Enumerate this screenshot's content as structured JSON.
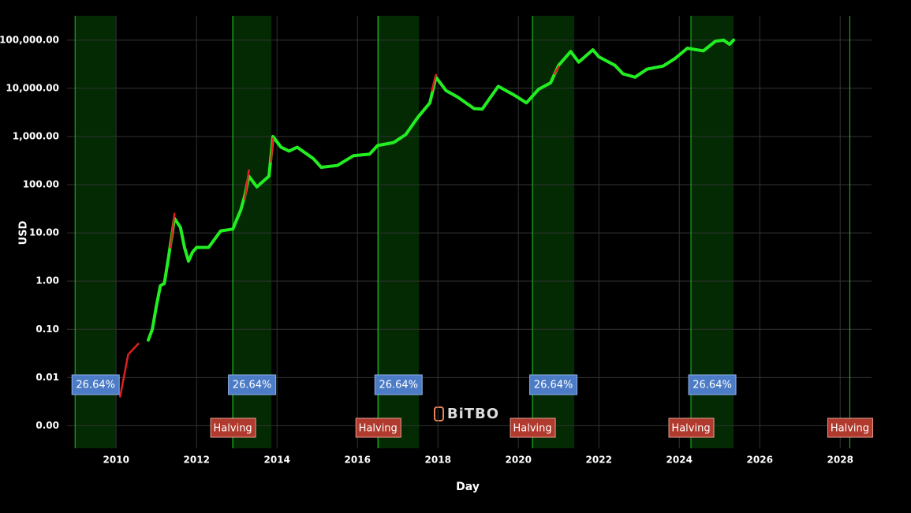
{
  "chart_data": {
    "type": "line",
    "log_y": true,
    "grid": true,
    "x_label": "Day",
    "y_label": "USD",
    "watermark": "BiTBO",
    "xlim": [
      2008.78,
      2028.78
    ],
    "xticks": [
      2010,
      2012,
      2014,
      2016,
      2018,
      2020,
      2022,
      2024,
      2026,
      2028
    ],
    "ylim": [
      0.00034,
      320000
    ],
    "yticks": [
      {
        "value": 0.001,
        "label": "0.00"
      },
      {
        "value": 0.01,
        "label": "0.01"
      },
      {
        "value": 0.1,
        "label": "0.10"
      },
      {
        "value": 1,
        "label": "1.00"
      },
      {
        "value": 10,
        "label": "10.00"
      },
      {
        "value": 100,
        "label": "100.00"
      },
      {
        "value": 1000,
        "label": "1,000.00"
      },
      {
        "value": 10000,
        "label": "10,000.00"
      },
      {
        "value": 100000,
        "label": "100,000.00"
      }
    ],
    "bands": [
      {
        "start": 2008.98,
        "end": 2010.0,
        "label": "26.64%"
      },
      {
        "start": 2012.9,
        "end": 2013.86,
        "label": "26.64%"
      },
      {
        "start": 2016.51,
        "end": 2017.53,
        "label": "26.64%"
      },
      {
        "start": 2020.35,
        "end": 2021.39,
        "label": "26.64%"
      },
      {
        "start": 2024.29,
        "end": 2025.35,
        "label": "26.64%"
      }
    ],
    "halvings": [
      {
        "x": 2012.9,
        "label": "Halving"
      },
      {
        "x": 2016.51,
        "label": "Halving"
      },
      {
        "x": 2020.35,
        "label": "Halving"
      },
      {
        "x": 2024.29,
        "label": "Halving"
      },
      {
        "x": 2028.24,
        "label": "Halving"
      }
    ],
    "series": [
      {
        "color": "#22ee22",
        "x": [
          2010.8,
          2010.9,
          2011.0,
          2011.1,
          2011.2,
          2011.3,
          2011.45,
          2011.6,
          2011.7,
          2011.8,
          2011.9,
          2012.0,
          2012.3,
          2012.6,
          2012.9,
          2013.1,
          2013.2,
          2013.3,
          2013.5,
          2013.8,
          2013.9,
          2014.1,
          2014.3,
          2014.5,
          2014.9,
          2015.1,
          2015.5,
          2015.9,
          2016.3,
          2016.5,
          2016.9,
          2017.2,
          2017.5,
          2017.8,
          2017.95,
          2018.2,
          2018.5,
          2018.9,
          2019.1,
          2019.5,
          2019.9,
          2020.2,
          2020.5,
          2020.8,
          2021.0,
          2021.3,
          2021.5,
          2021.85,
          2022.0,
          2022.4,
          2022.6,
          2022.9,
          2023.2,
          2023.6,
          2023.9,
          2024.2,
          2024.6,
          2024.9,
          2025.1,
          2025.25,
          2025.35
        ],
        "values": [
          0.06,
          0.1,
          0.3,
          0.8,
          0.9,
          3,
          20,
          13,
          5,
          2.6,
          4,
          5,
          5,
          11,
          12,
          30,
          60,
          150,
          90,
          150,
          1000,
          600,
          500,
          600,
          350,
          230,
          250,
          400,
          430,
          650,
          750,
          1100,
          2500,
          5000,
          17000,
          9000,
          6500,
          3800,
          3700,
          11000,
          7200,
          5000,
          9500,
          13000,
          30000,
          58000,
          35000,
          63000,
          45000,
          30000,
          20000,
          17000,
          25000,
          29000,
          42000,
          68000,
          60000,
          95000,
          100000,
          82000,
          100000
        ]
      },
      {
        "color": "#e02020",
        "x": [
          2010.1,
          2010.3,
          2010.55,
          null,
          2011.35,
          2011.45,
          null,
          2013.2,
          2013.3,
          null,
          2013.85,
          2013.9,
          null,
          2017.85,
          2017.95,
          null,
          2020.9,
          2021.0
        ],
        "values": [
          0.004,
          0.03,
          0.05,
          null,
          5,
          25,
          null,
          50,
          200,
          null,
          300,
          900,
          null,
          9000,
          19000,
          null,
          20000,
          28000
        ]
      }
    ]
  }
}
